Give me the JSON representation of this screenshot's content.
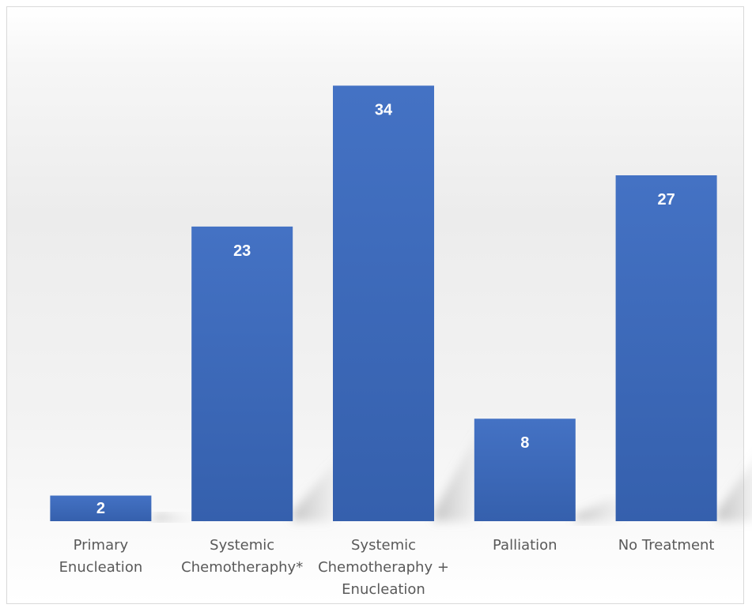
{
  "chart_data": {
    "type": "bar",
    "categories": [
      [
        "Primary",
        "Enucleation"
      ],
      [
        "Systemic",
        "Chemotheraphy*"
      ],
      [
        "Systemic",
        "Chemotheraphy +",
        "Enucleation"
      ],
      [
        "Palliation"
      ],
      [
        "No Treatment"
      ]
    ],
    "values": [
      2,
      23,
      34,
      8,
      27
    ],
    "title": "",
    "xlabel": "",
    "ylabel": "",
    "ylim": [
      0,
      36
    ],
    "grid": false,
    "legend": "none",
    "data_labels": true,
    "colors": {
      "bar_top": "#4472c4",
      "bar_bottom": "#3560ad",
      "label": "#ffffff",
      "category_text": "#595959"
    }
  }
}
